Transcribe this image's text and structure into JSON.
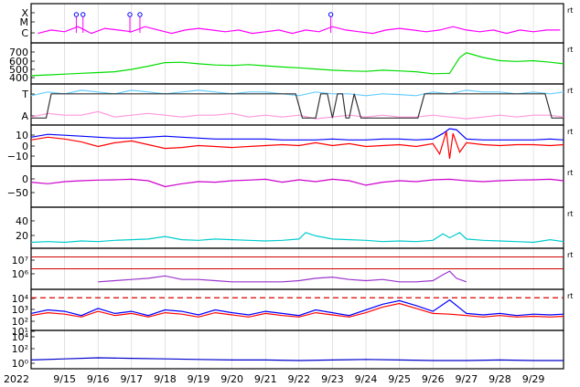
{
  "chart_data": {
    "type": "line",
    "title": "",
    "year_label": "2022",
    "x_range": [
      "9/14",
      "9/29"
    ],
    "x_tick_labels": [
      "9/15",
      "9/16",
      "9/17",
      "9/18",
      "9/19",
      "9/20",
      "9/21",
      "9/22",
      "9/23",
      "9/24",
      "9/25",
      "9/26",
      "9/27",
      "9/28",
      "9/29"
    ],
    "panel_marker": "rt",
    "panels": [
      {
        "id": "flare-class",
        "y_tick_labels": [
          "X",
          "M",
          "C"
        ],
        "series": [
          {
            "color": "#ff00ff",
            "x": [
              14.2,
              14.6,
              15.0,
              15.4,
              15.8,
              16.2,
              16.6,
              17.0,
              17.4,
              17.8,
              18.2,
              18.6,
              19.0,
              19.4,
              19.8,
              20.2,
              20.6,
              21.0,
              21.4,
              21.8,
              22.2,
              22.6,
              23.0,
              23.4,
              23.8,
              24.2,
              24.6,
              25.0,
              25.4,
              25.8,
              26.2,
              26.6,
              27.0,
              27.4,
              27.8,
              28.2,
              28.6,
              29.0,
              29.4,
              29.8
            ],
            "y": [
              0.2,
              0.3,
              0.25,
              0.4,
              0.2,
              0.35,
              0.3,
              0.25,
              0.4,
              0.3,
              0.2,
              0.3,
              0.35,
              0.3,
              0.25,
              0.3,
              0.2,
              0.25,
              0.3,
              0.2,
              0.3,
              0.25,
              0.4,
              0.3,
              0.25,
              0.2,
              0.3,
              0.35,
              0.3,
              0.25,
              0.3,
              0.4,
              0.3,
              0.25,
              0.3,
              0.2,
              0.3,
              0.25,
              0.3,
              0.3
            ]
          }
        ],
        "events_x": [
          15.35,
          15.55,
          16.95,
          17.25,
          22.95
        ]
      },
      {
        "id": "solar-wind-speed",
        "y_tick_labels": [
          "700",
          "600",
          "500",
          "400"
        ],
        "y_range": [
          300,
          750
        ],
        "series": [
          {
            "color": "#00dd00",
            "x": [
              14.0,
              14.5,
              15.0,
              15.5,
              16.0,
              16.5,
              17.0,
              17.5,
              18.0,
              18.5,
              19.0,
              19.5,
              20.0,
              20.5,
              21.0,
              21.5,
              22.0,
              22.5,
              23.0,
              23.5,
              24.0,
              24.5,
              25.0,
              25.5,
              26.0,
              26.5,
              26.8,
              27.0,
              27.5,
              28.0,
              28.5,
              29.0,
              29.5,
              29.9
            ],
            "y": [
              370,
              380,
              390,
              400,
              410,
              420,
              450,
              490,
              535,
              540,
              520,
              505,
              500,
              510,
              495,
              480,
              470,
              455,
              440,
              430,
              425,
              440,
              430,
              420,
              395,
              400,
              600,
              660,
              600,
              560,
              550,
              560,
              540,
              520
            ]
          }
        ]
      },
      {
        "id": "t-a-state",
        "y_tick_labels": [
          "T",
          "A"
        ],
        "series": [
          {
            "color": "#66ccff",
            "x": [
              14.0,
              14.5,
              15.0,
              15.5,
              16.0,
              16.5,
              17.0,
              17.5,
              18.0,
              18.5,
              19.0,
              19.5,
              20.0,
              20.5,
              21.0,
              21.5,
              22.0,
              22.5,
              23.0,
              23.5,
              24.0,
              24.5,
              25.0,
              25.5,
              26.0,
              26.5,
              27.0,
              27.5,
              28.0,
              28.5,
              29.0,
              29.5,
              29.9
            ],
            "y": [
              0.75,
              0.85,
              0.8,
              0.9,
              0.85,
              0.8,
              0.9,
              0.85,
              0.8,
              0.85,
              0.9,
              0.85,
              0.8,
              0.85,
              0.85,
              0.8,
              0.75,
              0.85,
              0.8,
              0.8,
              0.75,
              0.8,
              0.78,
              0.75,
              0.85,
              0.8,
              0.9,
              0.85,
              0.85,
              0.8,
              0.85,
              0.8,
              0.85
            ]
          },
          {
            "color": "#ff99dd",
            "x": [
              14.0,
              14.5,
              15.0,
              15.5,
              16.0,
              16.5,
              17.0,
              17.5,
              18.0,
              18.5,
              19.0,
              19.5,
              20.0,
              20.5,
              21.0,
              21.5,
              22.0,
              22.5,
              23.0,
              23.5,
              24.0,
              24.5,
              25.0,
              25.5,
              26.0,
              26.5,
              27.0,
              27.5,
              28.0,
              28.5,
              29.0,
              29.5,
              29.9
            ],
            "y": [
              0.15,
              0.25,
              0.2,
              0.2,
              0.3,
              0.15,
              0.2,
              0.25,
              0.2,
              0.15,
              0.2,
              0.2,
              0.25,
              0.15,
              0.2,
              0.15,
              0.2,
              0.1,
              0.15,
              0.2,
              0.15,
              0.2,
              0.15,
              0.15,
              0.2,
              0.15,
              0.1,
              0.15,
              0.2,
              0.15,
              0.2,
              0.2,
              0.15
            ]
          },
          {
            "color": "#333333",
            "x": [
              14.0,
              14.45,
              14.6,
              21.9,
              22.1,
              22.5,
              22.65,
              22.85,
              23.0,
              23.15,
              23.3,
              23.4,
              23.5,
              23.65,
              23.85,
              25.55,
              25.75,
              29.35,
              29.55,
              29.9
            ],
            "y": [
              0.12,
              0.12,
              0.8,
              0.8,
              0.12,
              0.12,
              0.8,
              0.8,
              0.12,
              0.8,
              0.8,
              0.12,
              0.12,
              0.8,
              0.12,
              0.12,
              0.8,
              0.8,
              0.12,
              0.12
            ]
          }
        ]
      },
      {
        "id": "magnetic-field",
        "y_tick_labels": [
          "10",
          "0",
          "−10"
        ],
        "y_range": [
          -20,
          18
        ],
        "series": [
          {
            "color": "#0000ff",
            "x": [
              14.0,
              14.5,
              15.0,
              15.5,
              16.0,
              16.5,
              17.0,
              17.5,
              18.0,
              18.5,
              19.0,
              19.5,
              20.0,
              20.5,
              21.0,
              21.5,
              22.0,
              22.5,
              23.0,
              23.5,
              24.0,
              24.5,
              25.0,
              25.5,
              26.0,
              26.3,
              26.5,
              26.7,
              27.0,
              27.5,
              28.0,
              28.5,
              29.0,
              29.5,
              29.9
            ],
            "y": [
              8,
              11,
              10,
              9,
              8,
              7,
              7,
              8,
              9,
              8,
              7,
              6,
              6,
              6,
              6,
              5,
              5,
              5,
              6,
              5,
              5,
              6,
              6,
              5,
              6,
              12,
              17,
              16,
              6,
              5,
              5,
              5,
              5,
              6,
              5
            ]
          },
          {
            "color": "#ff0000",
            "x": [
              14.0,
              14.5,
              15.0,
              15.5,
              16.0,
              16.5,
              17.0,
              17.5,
              18.0,
              18.5,
              19.0,
              19.5,
              20.0,
              20.5,
              21.0,
              21.5,
              22.0,
              22.5,
              23.0,
              23.5,
              24.0,
              24.5,
              25.0,
              25.5,
              26.0,
              26.2,
              26.4,
              26.5,
              26.6,
              26.8,
              27.0,
              27.5,
              28.0,
              28.5,
              29.0,
              29.5,
              29.9
            ],
            "y": [
              5,
              8,
              6,
              3,
              -2,
              2,
              4,
              0,
              -4,
              -3,
              -1,
              -2,
              -3,
              -2,
              -1,
              0,
              -1,
              2,
              -1,
              1,
              -2,
              -1,
              0,
              -2,
              1,
              -10,
              14,
              -15,
              12,
              -8,
              2,
              0,
              -1,
              0,
              0,
              -1,
              0
            ]
          }
        ]
      },
      {
        "id": "angle",
        "y_tick_labels": [
          "0",
          "−50"
        ],
        "y_range": [
          -85,
          35
        ],
        "series": [
          {
            "color": "#cc00cc",
            "x": [
              14.0,
              14.5,
              15.0,
              15.5,
              16.0,
              16.5,
              17.0,
              17.5,
              18.0,
              18.5,
              19.0,
              19.5,
              20.0,
              20.5,
              21.0,
              21.5,
              22.0,
              22.5,
              23.0,
              23.5,
              24.0,
              24.5,
              25.0,
              25.5,
              26.0,
              26.5,
              27.0,
              27.5,
              28.0,
              28.5,
              29.0,
              29.5,
              29.9
            ],
            "y": [
              -10,
              -15,
              -8,
              -5,
              -3,
              -2,
              0,
              -5,
              -25,
              -15,
              -8,
              -10,
              -5,
              -3,
              0,
              -10,
              -2,
              -8,
              0,
              -5,
              -20,
              -10,
              -5,
              -8,
              -2,
              0,
              -5,
              -8,
              -5,
              -3,
              -2,
              0,
              -5
            ]
          }
        ]
      },
      {
        "id": "density",
        "y_tick_labels": [
          "40",
          "20"
        ],
        "y_range": [
          0,
          55
        ],
        "series": [
          {
            "color": "#00cccc",
            "x": [
              14.0,
              14.5,
              15.0,
              15.5,
              16.0,
              16.5,
              17.0,
              17.5,
              18.0,
              18.5,
              19.0,
              19.5,
              20.0,
              20.5,
              21.0,
              21.5,
              22.0,
              22.2,
              22.5,
              23.0,
              23.5,
              24.0,
              24.5,
              25.0,
              25.5,
              26.0,
              26.3,
              26.5,
              26.8,
              27.0,
              27.5,
              28.0,
              28.5,
              29.0,
              29.5,
              29.9
            ],
            "y": [
              5,
              6,
              5,
              7,
              6,
              8,
              9,
              10,
              14,
              9,
              8,
              10,
              9,
              8,
              7,
              8,
              10,
              20,
              15,
              10,
              9,
              8,
              6,
              7,
              6,
              8,
              18,
              12,
              20,
              10,
              8,
              7,
              6,
              5,
              9,
              6
            ]
          }
        ]
      },
      {
        "id": "temperature",
        "y_tick_labels": [
          "10⁷",
          "10⁶"
        ],
        "y_range": [
          4.5,
          7.5
        ],
        "series": [
          {
            "color": "#9933cc",
            "x": [
              16.0,
              16.5,
              17.0,
              17.5,
              18.0,
              18.5,
              19.0,
              19.5,
              20.0,
              20.5,
              21.0,
              21.5,
              22.0,
              22.5,
              23.0,
              23.5,
              24.0,
              24.5,
              25.0,
              25.5,
              26.0,
              26.3,
              26.5,
              26.7,
              27.0
            ],
            "y": [
              4.9,
              5.0,
              5.1,
              5.2,
              5.4,
              5.1,
              5.1,
              5.0,
              4.9,
              4.9,
              4.9,
              4.9,
              5.0,
              5.2,
              5.3,
              5.1,
              5.0,
              5.1,
              4.9,
              4.9,
              5.0,
              5.5,
              5.8,
              5.2,
              4.9
            ]
          }
        ],
        "reference_lines_y": [
          7.0,
          6.0
        ]
      },
      {
        "id": "particle-flux",
        "y_tick_labels": [
          "10⁴",
          "10³",
          "10²",
          "10¹"
        ],
        "y_range": [
          -0.5,
          4.5
        ],
        "threshold_y": 3.7,
        "series": [
          {
            "color": "#0000ff",
            "x": [
              14.0,
              14.5,
              15.0,
              15.5,
              16.0,
              16.5,
              17.0,
              17.5,
              18.0,
              18.5,
              19.0,
              19.5,
              20.0,
              20.5,
              21.0,
              21.5,
              22.0,
              22.5,
              23.0,
              23.5,
              24.0,
              24.5,
              25.0,
              25.5,
              26.0,
              26.5,
              27.0,
              27.5,
              28.0,
              28.5,
              29.0,
              29.5,
              29.9
            ],
            "y": [
              1.5,
              2.0,
              1.8,
              1.2,
              2.2,
              1.5,
              1.8,
              1.2,
              2.0,
              1.8,
              1.3,
              2.0,
              1.6,
              1.3,
              1.8,
              1.5,
              1.2,
              2.0,
              1.6,
              1.2,
              2.0,
              2.8,
              3.3,
              2.6,
              1.8,
              3.4,
              1.5,
              1.3,
              1.5,
              1.2,
              1.4,
              1.3,
              1.4
            ]
          },
          {
            "color": "#ff0000",
            "x": [
              14.0,
              14.5,
              15.0,
              15.5,
              16.0,
              16.5,
              17.0,
              17.5,
              18.0,
              18.5,
              19.0,
              19.5,
              20.0,
              20.5,
              21.0,
              21.5,
              22.0,
              22.5,
              23.0,
              23.5,
              24.0,
              24.5,
              25.0,
              25.5,
              26.0,
              26.5,
              27.0,
              27.5,
              28.0,
              28.5,
              29.0,
              29.5,
              29.9
            ],
            "y": [
              1.2,
              1.6,
              1.4,
              1.0,
              1.8,
              1.2,
              1.5,
              1.0,
              1.6,
              1.4,
              1.0,
              1.6,
              1.3,
              1.0,
              1.5,
              1.2,
              1.0,
              1.6,
              1.3,
              1.0,
              1.6,
              2.4,
              2.9,
              2.2,
              1.5,
              1.4,
              1.2,
              1.0,
              1.2,
              1.0,
              1.1,
              1.0,
              1.1
            ]
          }
        ]
      },
      {
        "id": "electron-flux",
        "y_tick_labels": [
          "10⁴",
          "10²",
          "10⁰"
        ],
        "y_range": [
          -1,
          5
        ],
        "series": [
          {
            "color": "#0000cc",
            "x": [
              14.0,
              15.0,
              16.0,
              17.0,
              18.0,
              19.0,
              20.0,
              21.0,
              22.0,
              23.0,
              24.0,
              25.0,
              26.0,
              27.0,
              28.0,
              29.0,
              29.9
            ],
            "y": [
              0.1,
              0.3,
              0.5,
              0.4,
              0.3,
              0.2,
              0.1,
              0.1,
              0.0,
              0.1,
              0.2,
              0.1,
              0.0,
              0.0,
              0.1,
              0.0,
              0.0
            ]
          }
        ]
      }
    ]
  }
}
